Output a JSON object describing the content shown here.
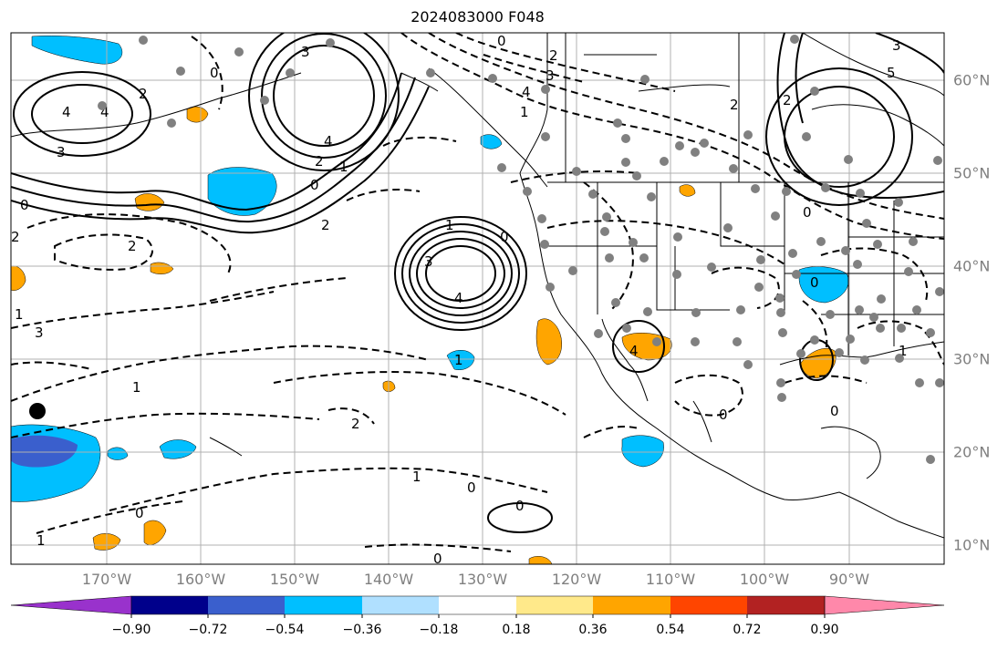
{
  "title": "2024083000 F048",
  "lon_labels": [
    "170°W",
    "160°W",
    "150°W",
    "140°W",
    "130°W",
    "120°W",
    "110°W",
    "100°W",
    "90°W"
  ],
  "lat_labels": [
    "60°N",
    "50°N",
    "40°N",
    "30°N",
    "20°N",
    "10°N"
  ],
  "colorbar": {
    "labels": [
      "−0.90",
      "−0.72",
      "−0.54",
      "−0.36",
      "−0.18",
      "0.18",
      "0.36",
      "0.54",
      "0.72",
      "0.90"
    ],
    "colors": [
      "#9932cc",
      "#00008b",
      "#3a5fcd",
      "#00bfff",
      "#b0e0ff",
      "#ffffff",
      "#ffe98a",
      "#ffa500",
      "#ff4500",
      "#b22222",
      "#ff88aa"
    ]
  },
  "contour_labels": [
    "3",
    "4",
    "4",
    "2",
    "3",
    "4",
    "2",
    "1",
    "0",
    "0",
    "2",
    "3",
    "4",
    "1",
    "0",
    "3",
    "4",
    "2",
    "1",
    "0",
    "2",
    "1",
    "0",
    "2",
    "3",
    "4",
    "0",
    "1",
    "2",
    "3",
    "5",
    "2",
    "0",
    "0",
    "1",
    "1",
    "2",
    "1",
    "0",
    "0",
    "1",
    "0",
    "0",
    "0"
  ]
}
